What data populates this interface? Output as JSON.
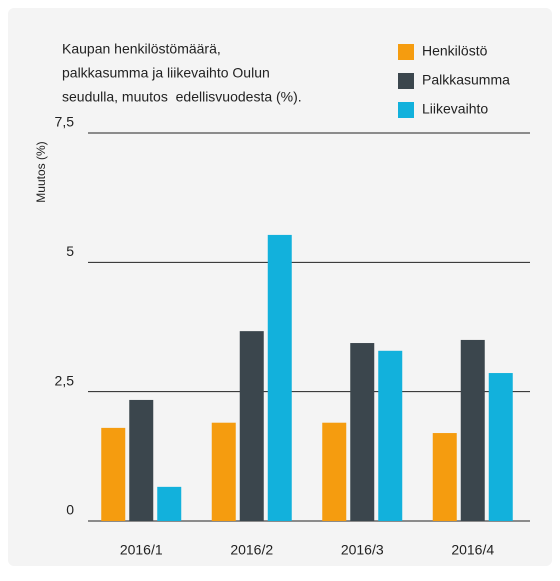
{
  "chart_data": {
    "type": "bar",
    "title": [
      "Kaupan henkilöstömäärä,",
      "palkkasumma ja liikevaihto Oulun",
      "seudulla, muutos  edellisvuodesta (%)."
    ],
    "ylabel": "Muutos (%)",
    "categories": [
      "2016/1",
      "2016/2",
      "2016/3",
      "2016/4"
    ],
    "series": [
      {
        "name": "Henkilöstö",
        "color": "#f59c0f",
        "values": [
          1.8,
          1.9,
          1.9,
          1.7
        ]
      },
      {
        "name": "Palkkasumma",
        "color": "#3b464d",
        "values": [
          2.34,
          3.67,
          3.44,
          3.5
        ]
      },
      {
        "name": "Liikevaihto",
        "color": "#12b1dc",
        "values": [
          0.66,
          5.53,
          3.29,
          2.86
        ]
      }
    ],
    "ylim": [
      0,
      7.5
    ],
    "yticks": [
      0,
      {
        "value": 2.5,
        "label": "2,5"
      },
      5,
      {
        "value": 7.5,
        "label": "7,5"
      }
    ],
    "grid": true,
    "legend": "top-right"
  }
}
